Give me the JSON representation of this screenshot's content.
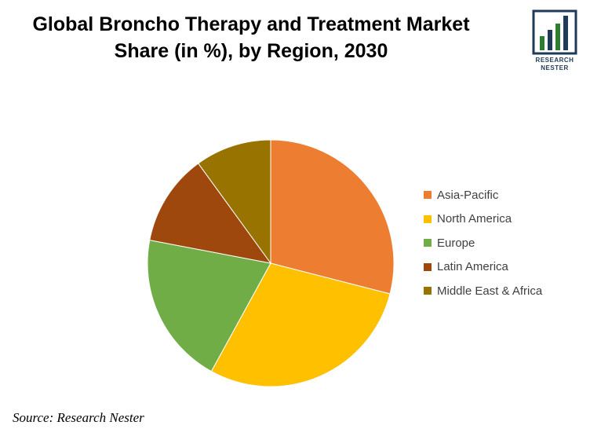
{
  "title": {
    "line1": "Global Broncho Therapy and Treatment Market",
    "line2": "Share (in %), by Region, 2030"
  },
  "logo": {
    "line1": "RESEARCH",
    "line2": "NESTER",
    "icon": "bar-chart-logo-icon",
    "colors": {
      "frame": "#1f3b57",
      "bars": "#2e7d32"
    }
  },
  "source": "Source: Research Nester",
  "chart_data": {
    "type": "pie",
    "title": "Global Broncho Therapy and Treatment Market Share (in %), by Region, 2030",
    "legend_position": "right",
    "start_angle": "12 o'clock",
    "direction": "clockwise",
    "slices": [
      {
        "label": "Asia-Pacific",
        "value": 29,
        "color": "#ED7D31"
      },
      {
        "label": "North America",
        "value": 29,
        "color": "#FFC000"
      },
      {
        "label": "Europe",
        "value": 20,
        "color": "#70AD47"
      },
      {
        "label": "Latin America",
        "value": 12,
        "color": "#9E480E"
      },
      {
        "label": "Middle East & Africa",
        "value": 10,
        "color": "#997300"
      }
    ]
  }
}
